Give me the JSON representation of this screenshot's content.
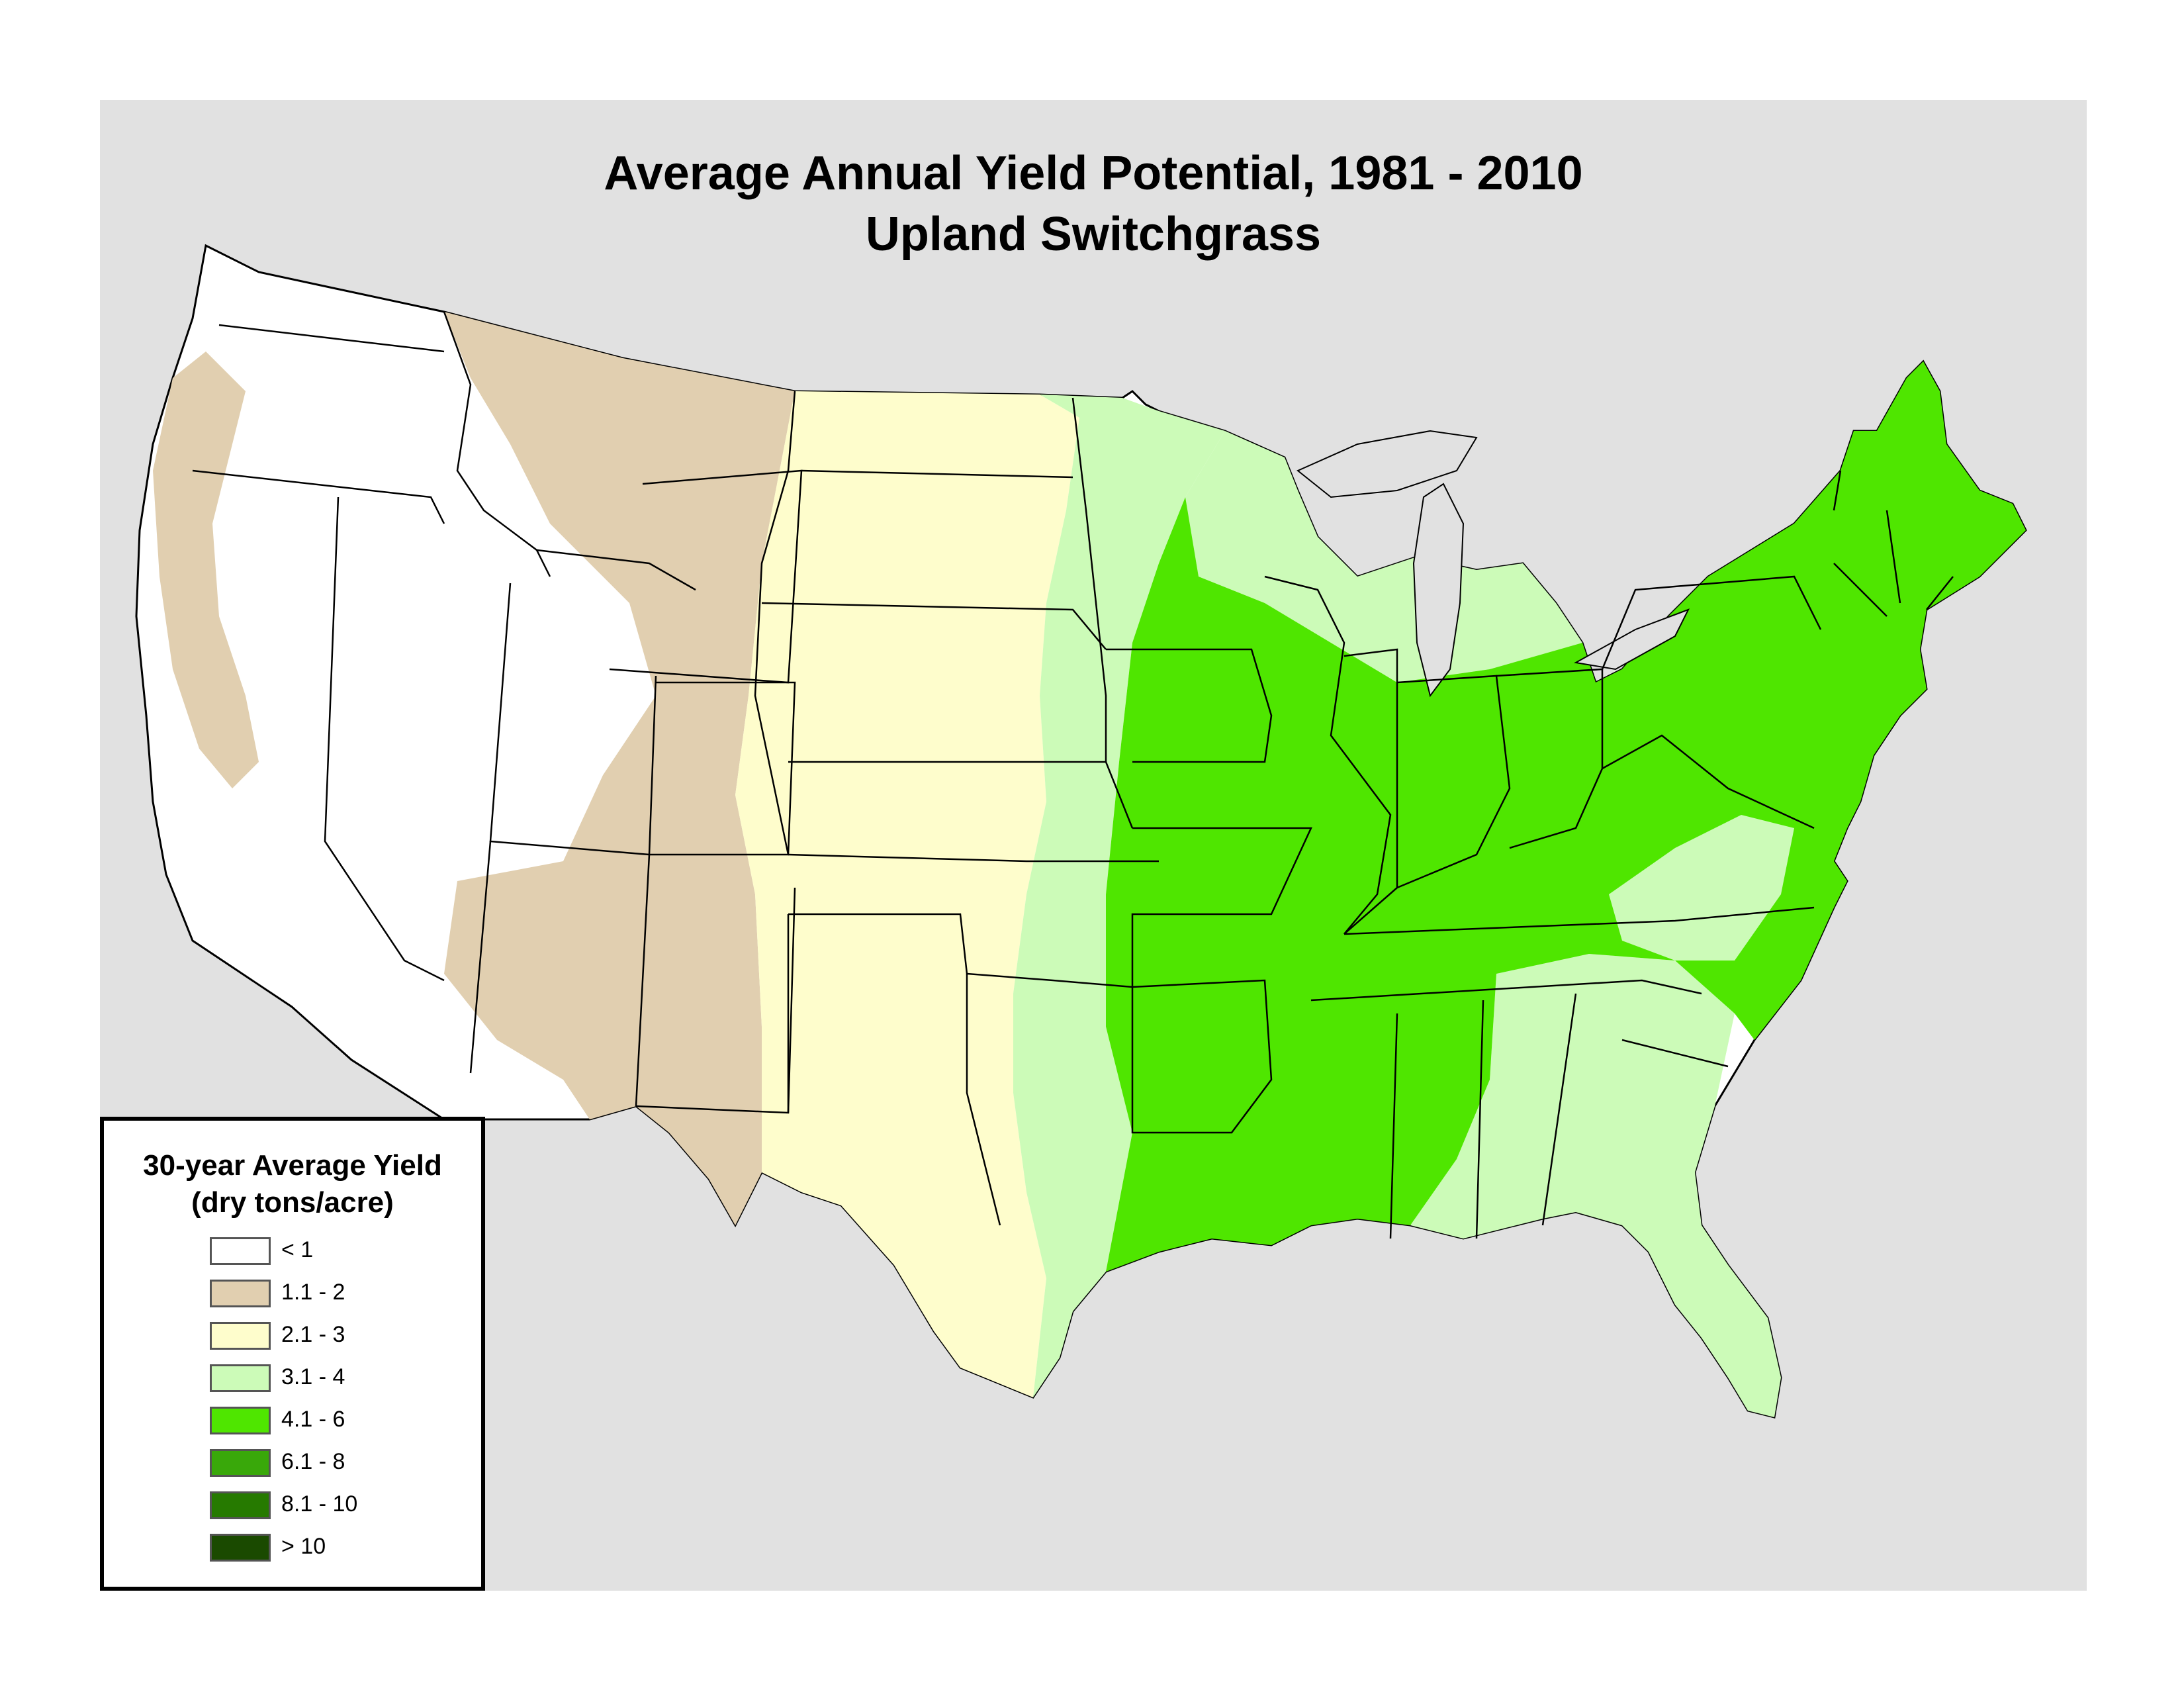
{
  "title": {
    "line1": "Average Annual Yield Potential, 1981 - 2010",
    "line2": "Upland Switchgrass"
  },
  "legend": {
    "title_line1": "30-year Average Yield",
    "title_line2": "(dry tons/acre)",
    "classes": [
      {
        "label": "< 1",
        "color": "#ffffff"
      },
      {
        "label": "1.1 - 2",
        "color": "#e1cfb0"
      },
      {
        "label": "2.1 - 3",
        "color": "#fefdcc"
      },
      {
        "label": "3.1 - 4",
        "color": "#ccfbb8"
      },
      {
        "label": "4.1 - 6",
        "color": "#4fe600"
      },
      {
        "label": "6.1 - 8",
        "color": "#39a80a"
      },
      {
        "label": "8.1 - 10",
        "color": "#267a00"
      },
      {
        "label": "> 10",
        "color": "#1a4a00"
      }
    ]
  },
  "colors": {
    "background": "#e1e1e1",
    "state_border": "#000000"
  }
}
